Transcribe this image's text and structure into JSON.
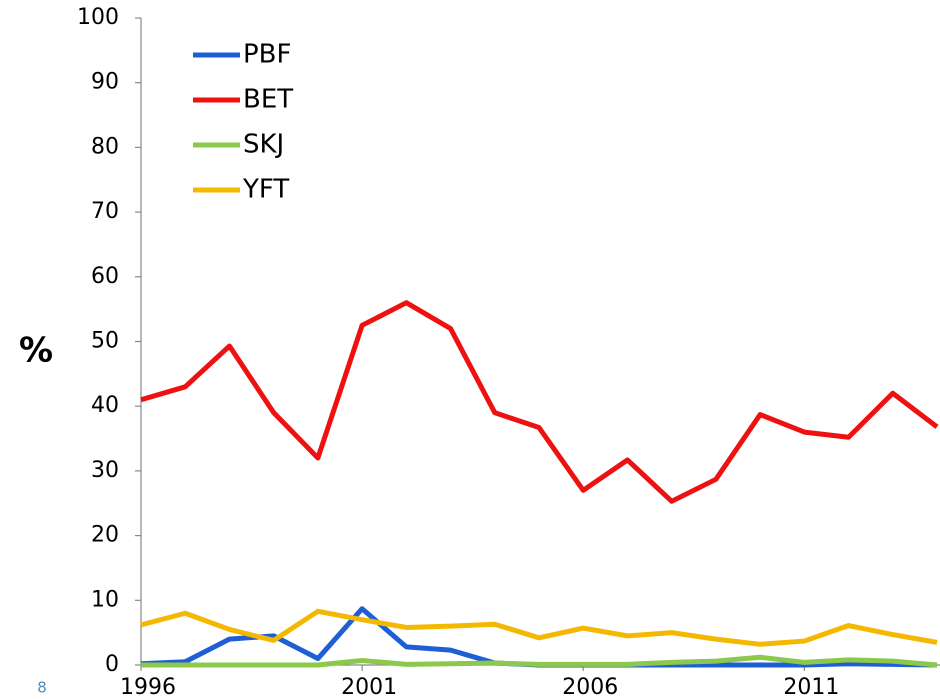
{
  "chart_data": {
    "type": "line",
    "ylabel": "%",
    "page_number": "8",
    "x": [
      1996,
      1997,
      1998,
      1999,
      2000,
      2001,
      2002,
      2003,
      2004,
      2005,
      2006,
      2007,
      2008,
      2009,
      2010,
      2011,
      2012,
      2013,
      2014
    ],
    "xlim": [
      1996,
      2014
    ],
    "xticks": [
      1996,
      2001,
      2006,
      2011
    ],
    "ylim": [
      0,
      100
    ],
    "yticks": [
      0,
      10,
      20,
      30,
      40,
      50,
      60,
      70,
      80,
      90,
      100
    ],
    "legend": "upper-left",
    "series": [
      {
        "name": "PBF",
        "color": "#1f5fd6",
        "values": [
          0.2,
          0.5,
          4,
          4.5,
          1,
          8.7,
          2.8,
          2.3,
          0.3,
          0,
          0,
          0,
          0,
          0,
          0,
          0,
          0.2,
          0.1,
          0
        ]
      },
      {
        "name": "BET",
        "color": "#ee1111",
        "values": [
          41,
          43,
          49.3,
          39,
          32,
          52.5,
          56,
          52,
          39,
          36.7,
          27,
          31.7,
          25.3,
          28.7,
          38.7,
          36,
          35.2,
          42,
          36.8
        ]
      },
      {
        "name": "SKJ",
        "color": "#8cc84b",
        "values": [
          0,
          0,
          0,
          0,
          0,
          0.7,
          0.1,
          0.2,
          0.3,
          0.1,
          0.1,
          0.1,
          0.4,
          0.6,
          1.2,
          0.4,
          0.8,
          0.6,
          0
        ]
      },
      {
        "name": "YFT",
        "color": "#f5b800",
        "values": [
          6.2,
          8,
          5.5,
          3.8,
          8.3,
          7,
          5.8,
          6,
          6.3,
          4.2,
          5.7,
          4.5,
          5,
          4,
          3.2,
          3.7,
          6.1,
          4.7,
          3.5
        ]
      }
    ]
  }
}
